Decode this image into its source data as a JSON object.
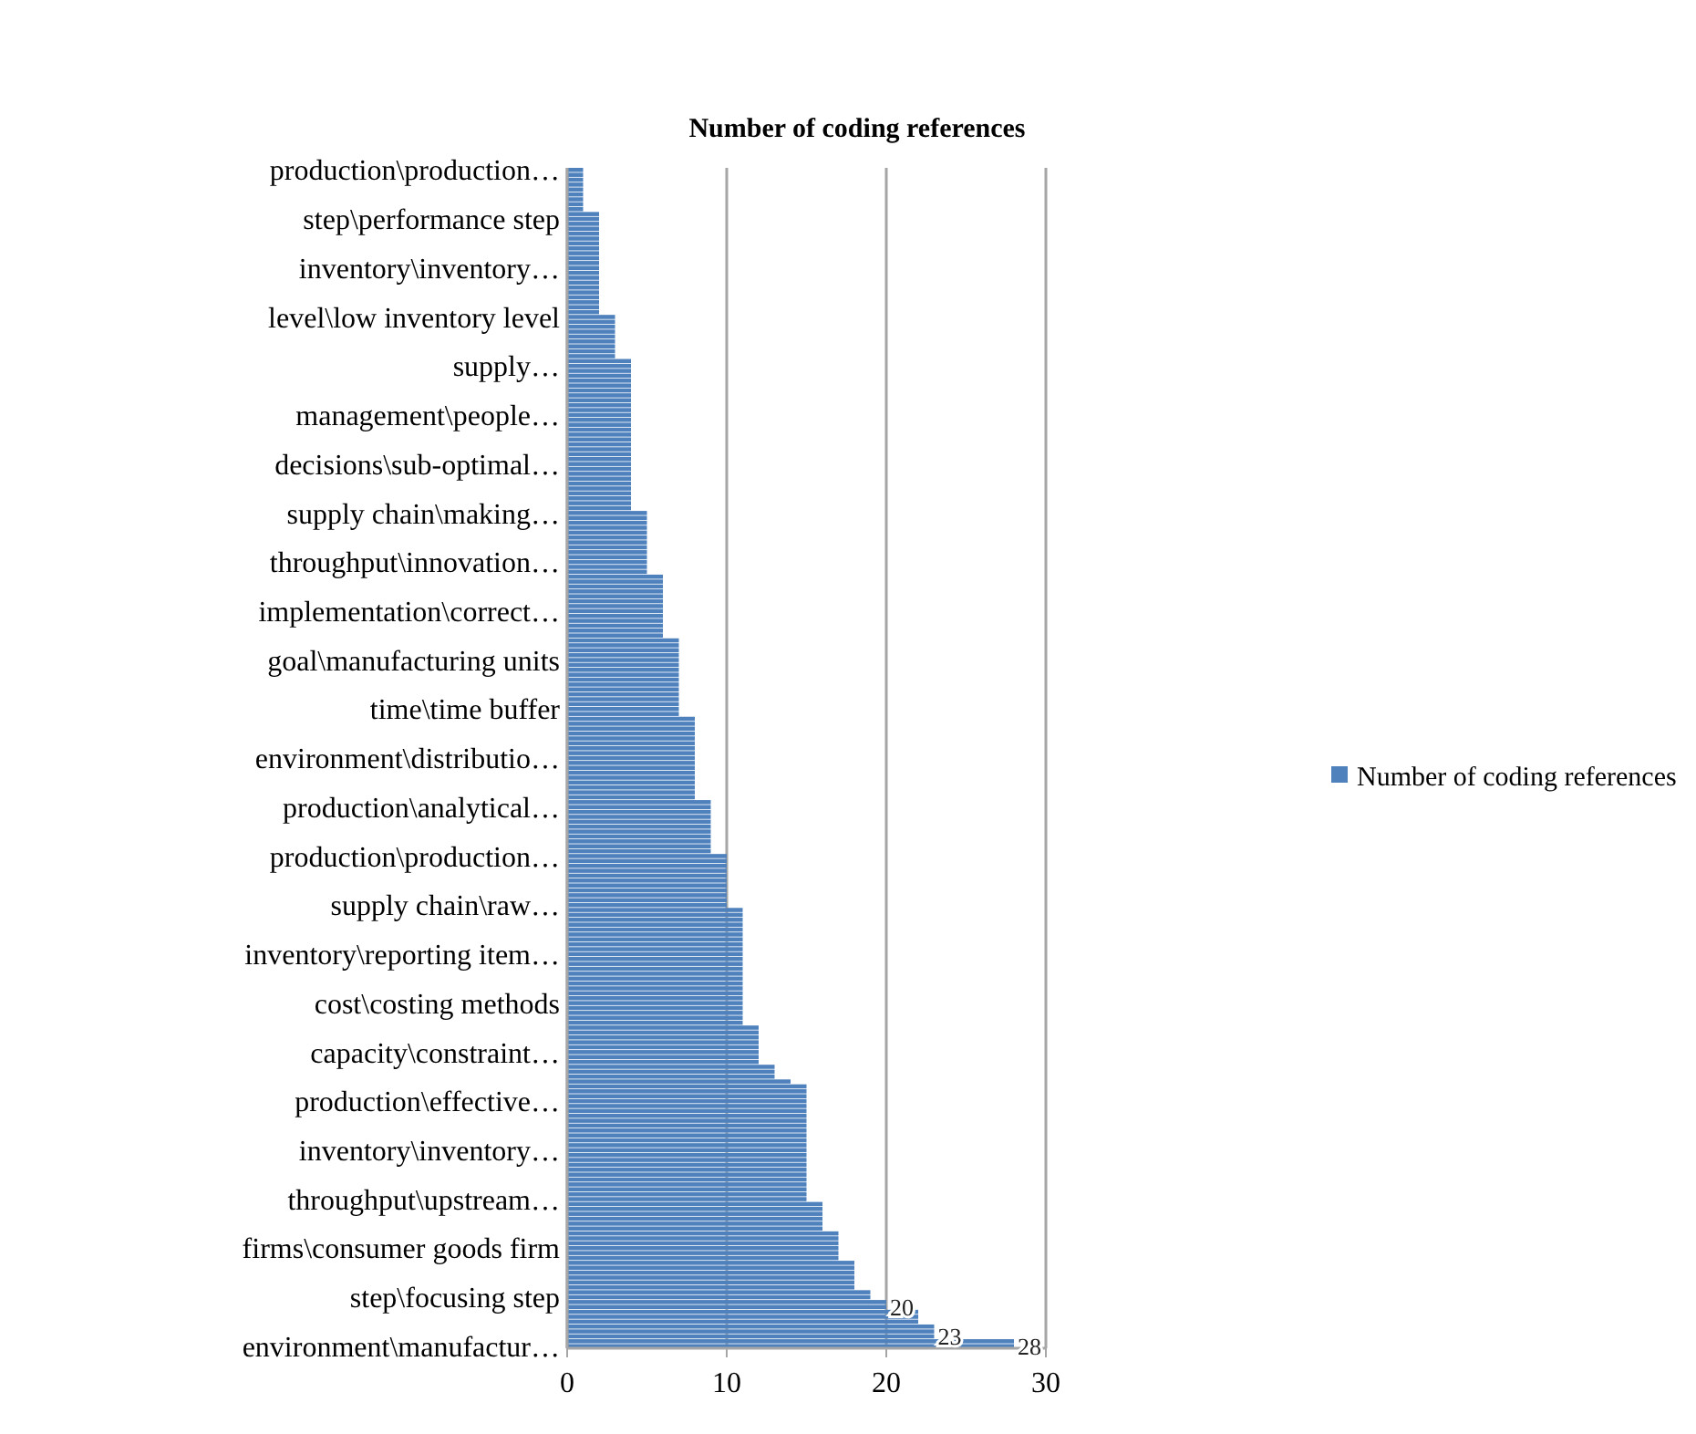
{
  "chart_data": {
    "type": "bar",
    "orientation": "horizontal",
    "title": "Number of coding references",
    "categories": [
      "production\\production…",
      null,
      null,
      null,
      null,
      null,
      null,
      null,
      null,
      null,
      "step\\performance step",
      null,
      null,
      null,
      null,
      null,
      null,
      null,
      null,
      null,
      "inventory\\inventory…",
      null,
      null,
      null,
      null,
      null,
      null,
      null,
      null,
      null,
      "level\\low inventory level",
      null,
      null,
      null,
      null,
      null,
      null,
      null,
      null,
      null,
      "supply…",
      null,
      null,
      null,
      null,
      null,
      null,
      null,
      null,
      null,
      "management\\people…",
      null,
      null,
      null,
      null,
      null,
      null,
      null,
      null,
      null,
      "decisions\\sub-optimal…",
      null,
      null,
      null,
      null,
      null,
      null,
      null,
      null,
      null,
      "supply chain\\making…",
      null,
      null,
      null,
      null,
      null,
      null,
      null,
      null,
      null,
      "throughput\\innovation…",
      null,
      null,
      null,
      null,
      null,
      null,
      null,
      null,
      null,
      "implementation\\correct…",
      null,
      null,
      null,
      null,
      null,
      null,
      null,
      null,
      null,
      "goal\\manufacturing units",
      null,
      null,
      null,
      null,
      null,
      null,
      null,
      null,
      null,
      "time\\time buffer",
      null,
      null,
      null,
      null,
      null,
      null,
      null,
      null,
      null,
      "environment\\distributio…",
      null,
      null,
      null,
      null,
      null,
      null,
      null,
      null,
      null,
      "production\\analytical…",
      null,
      null,
      null,
      null,
      null,
      null,
      null,
      null,
      null,
      "production\\production…",
      null,
      null,
      null,
      null,
      null,
      null,
      null,
      null,
      null,
      "supply chain\\raw…",
      null,
      null,
      null,
      null,
      null,
      null,
      null,
      null,
      null,
      "inventory\\reporting item…",
      null,
      null,
      null,
      null,
      null,
      null,
      null,
      null,
      null,
      "cost\\costing methods",
      null,
      null,
      null,
      null,
      null,
      null,
      null,
      null,
      null,
      "capacity\\constraint…",
      null,
      null,
      null,
      null,
      null,
      null,
      null,
      null,
      null,
      "production\\effective…",
      null,
      null,
      null,
      null,
      null,
      null,
      null,
      null,
      null,
      "inventory\\inventory…",
      null,
      null,
      null,
      null,
      null,
      null,
      null,
      null,
      null,
      "throughput\\upstream…",
      null,
      null,
      null,
      null,
      null,
      null,
      null,
      null,
      null,
      "firms\\consumer goods firm",
      null,
      null,
      null,
      null,
      null,
      null,
      null,
      null,
      null,
      "step\\focusing step",
      null,
      null,
      null,
      null,
      null,
      null,
      null,
      null,
      null,
      "environment\\manufactur…"
    ],
    "series": [
      {
        "name": "Number of coding references",
        "color": "#4f81bd",
        "value_labels": [
          null,
          null,
          null,
          null,
          null,
          null,
          null,
          null,
          null,
          null,
          null,
          null,
          null,
          null,
          null,
          null,
          null,
          null,
          null,
          null,
          null,
          null,
          null,
          null,
          null,
          null,
          null,
          null,
          null,
          null,
          null,
          null,
          null,
          null,
          null,
          null,
          null,
          null,
          null,
          null,
          null,
          null,
          null,
          null,
          null,
          null,
          null,
          null,
          null,
          null,
          null,
          null,
          null,
          null,
          null,
          null,
          null,
          null,
          null,
          null,
          null,
          null,
          null,
          null,
          null,
          null,
          null,
          null,
          null,
          null,
          null,
          null,
          null,
          null,
          null,
          null,
          null,
          null,
          null,
          null,
          null,
          null,
          null,
          null,
          null,
          null,
          null,
          null,
          null,
          null,
          null,
          null,
          null,
          null,
          null,
          null,
          null,
          null,
          null,
          null,
          null,
          null,
          null,
          null,
          null,
          null,
          null,
          null,
          null,
          null,
          null,
          null,
          null,
          null,
          null,
          null,
          null,
          null,
          null,
          null,
          null,
          null,
          null,
          null,
          null,
          null,
          null,
          null,
          null,
          null,
          null,
          null,
          null,
          null,
          null,
          null,
          null,
          null,
          null,
          null,
          null,
          null,
          null,
          null,
          null,
          null,
          null,
          null,
          null,
          null,
          null,
          null,
          null,
          null,
          null,
          null,
          null,
          null,
          null,
          null,
          null,
          null,
          null,
          null,
          null,
          null,
          null,
          null,
          null,
          null,
          null,
          null,
          null,
          null,
          null,
          null,
          null,
          null,
          null,
          null,
          null,
          null,
          null,
          null,
          null,
          null,
          null,
          null,
          null,
          null,
          null,
          null,
          null,
          null,
          null,
          null,
          null,
          null,
          null,
          null,
          null,
          null,
          null,
          null,
          null,
          null,
          null,
          null,
          null,
          null,
          null,
          null,
          null,
          null,
          null,
          null,
          null,
          null,
          null,
          null,
          null,
          null,
          null,
          null,
          null,
          null,
          null,
          null,
          null,
          null,
          null,
          null,
          "20",
          null,
          null,
          null,
          null,
          null,
          "23",
          null,
          "28"
        ],
        "values": [
          1,
          1,
          1,
          1,
          1,
          1,
          1,
          1,
          1,
          2,
          2,
          2,
          2,
          2,
          2,
          2,
          2,
          2,
          2,
          2,
          2,
          2,
          2,
          2,
          2,
          2,
          2,
          2,
          2,
          2,
          3,
          3,
          3,
          3,
          3,
          3,
          3,
          3,
          3,
          4,
          4,
          4,
          4,
          4,
          4,
          4,
          4,
          4,
          4,
          4,
          4,
          4,
          4,
          4,
          4,
          4,
          4,
          4,
          4,
          4,
          4,
          4,
          4,
          4,
          4,
          4,
          4,
          4,
          4,
          4,
          5,
          5,
          5,
          5,
          5,
          5,
          5,
          5,
          5,
          5,
          5,
          5,
          5,
          6,
          6,
          6,
          6,
          6,
          6,
          6,
          6,
          6,
          6,
          6,
          6,
          6,
          7,
          7,
          7,
          7,
          7,
          7,
          7,
          7,
          7,
          7,
          7,
          7,
          7,
          7,
          7,
          7,
          8,
          8,
          8,
          8,
          8,
          8,
          8,
          8,
          8,
          8,
          8,
          8,
          8,
          8,
          8,
          8,
          8,
          9,
          9,
          9,
          9,
          9,
          9,
          9,
          9,
          9,
          9,
          9,
          10,
          10,
          10,
          10,
          10,
          10,
          10,
          10,
          10,
          10,
          10,
          11,
          11,
          11,
          11,
          11,
          11,
          11,
          11,
          11,
          11,
          11,
          11,
          11,
          11,
          11,
          11,
          11,
          11,
          11,
          11,
          11,
          11,
          11,
          11,
          12,
          12,
          12,
          12,
          12,
          12,
          12,
          12,
          13,
          13,
          13,
          14,
          15,
          15,
          15,
          15,
          15,
          15,
          15,
          15,
          15,
          15,
          15,
          15,
          15,
          15,
          15,
          15,
          15,
          15,
          15,
          15,
          15,
          15,
          15,
          15,
          16,
          16,
          16,
          16,
          16,
          16,
          17,
          17,
          17,
          17,
          17,
          17,
          18,
          18,
          18,
          18,
          18,
          18,
          19,
          19,
          20,
          20,
          22,
          22,
          22,
          23,
          23,
          23,
          28,
          28
        ]
      }
    ],
    "xlim": [
      0,
      30
    ],
    "xticks": [
      0,
      10,
      20,
      30
    ],
    "grid": "x",
    "legend": "right"
  }
}
